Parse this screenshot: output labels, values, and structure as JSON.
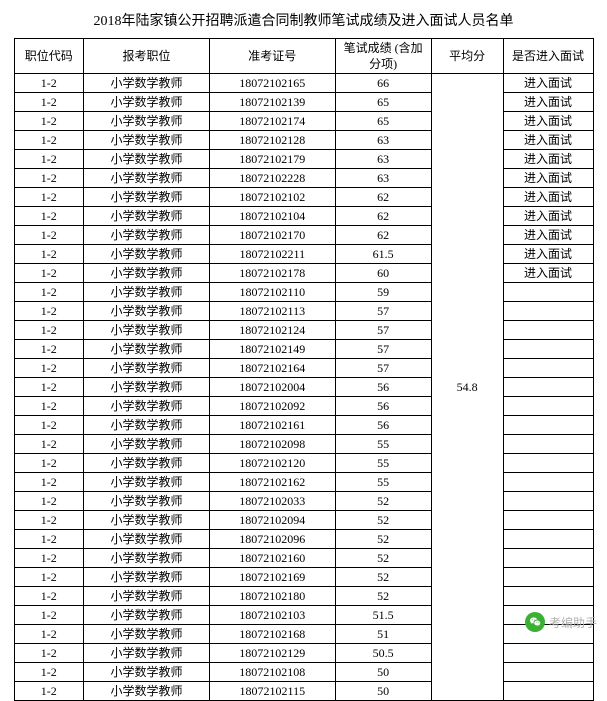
{
  "title": "2018年陆家镇公开招聘派遣合同制教师笔试成绩及进入面试人员名单",
  "table": {
    "headers": {
      "code": "职位代码",
      "position": "报考职位",
      "examno": "准考证号",
      "score": "笔试成绩\n(含加分项)",
      "avg": "平均分",
      "interview": "是否进入面试"
    },
    "avg_value": "54.8",
    "position_label": "小学数学教师",
    "code_label": "1-2",
    "interview_yes": "进入面试",
    "rows": [
      {
        "exam": "18072102165",
        "score": "66",
        "inter": true
      },
      {
        "exam": "18072102139",
        "score": "65",
        "inter": true
      },
      {
        "exam": "18072102174",
        "score": "65",
        "inter": true
      },
      {
        "exam": "18072102128",
        "score": "63",
        "inter": true
      },
      {
        "exam": "18072102179",
        "score": "63",
        "inter": true
      },
      {
        "exam": "18072102228",
        "score": "63",
        "inter": true
      },
      {
        "exam": "18072102102",
        "score": "62",
        "inter": true
      },
      {
        "exam": "18072102104",
        "score": "62",
        "inter": true
      },
      {
        "exam": "18072102170",
        "score": "62",
        "inter": true
      },
      {
        "exam": "18072102211",
        "score": "61.5",
        "inter": true
      },
      {
        "exam": "18072102178",
        "score": "60",
        "inter": true
      },
      {
        "exam": "18072102110",
        "score": "59",
        "inter": false
      },
      {
        "exam": "18072102113",
        "score": "57",
        "inter": false
      },
      {
        "exam": "18072102124",
        "score": "57",
        "inter": false
      },
      {
        "exam": "18072102149",
        "score": "57",
        "inter": false
      },
      {
        "exam": "18072102164",
        "score": "57",
        "inter": false
      },
      {
        "exam": "18072102004",
        "score": "56",
        "inter": false
      },
      {
        "exam": "18072102092",
        "score": "56",
        "inter": false
      },
      {
        "exam": "18072102161",
        "score": "56",
        "inter": false
      },
      {
        "exam": "18072102098",
        "score": "55",
        "inter": false
      },
      {
        "exam": "18072102120",
        "score": "55",
        "inter": false
      },
      {
        "exam": "18072102162",
        "score": "55",
        "inter": false
      },
      {
        "exam": "18072102033",
        "score": "52",
        "inter": false
      },
      {
        "exam": "18072102094",
        "score": "52",
        "inter": false
      },
      {
        "exam": "18072102096",
        "score": "52",
        "inter": false
      },
      {
        "exam": "18072102160",
        "score": "52",
        "inter": false
      },
      {
        "exam": "18072102169",
        "score": "52",
        "inter": false
      },
      {
        "exam": "18072102180",
        "score": "52",
        "inter": false
      },
      {
        "exam": "18072102103",
        "score": "51.5",
        "inter": false
      },
      {
        "exam": "18072102168",
        "score": "51",
        "inter": false
      },
      {
        "exam": "18072102129",
        "score": "50.5",
        "inter": false
      },
      {
        "exam": "18072102108",
        "score": "50",
        "inter": false
      },
      {
        "exam": "18072102115",
        "score": "50",
        "inter": false
      }
    ]
  },
  "watermark": {
    "text": "考编助手"
  },
  "colors": {
    "border": "#000000",
    "bg": "#ffffff",
    "wm_text": "#b0b0b0",
    "wm_icon_bg": "#3cb034"
  }
}
